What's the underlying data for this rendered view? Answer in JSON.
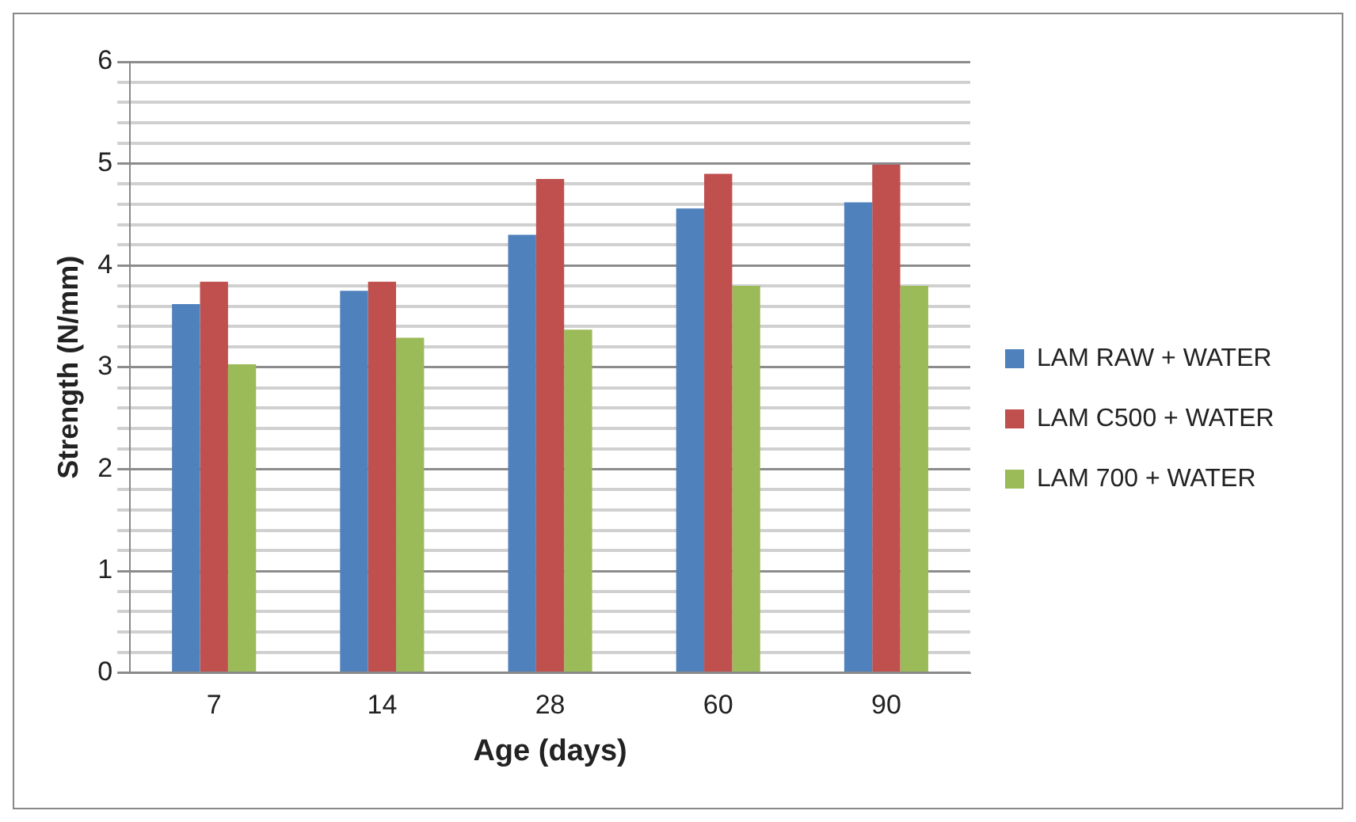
{
  "chart_data": {
    "type": "bar",
    "xlabel": "Age (days)",
    "ylabel": "Strength (N/mm)",
    "categories": [
      "7",
      "14",
      "28",
      "60",
      "90"
    ],
    "series": [
      {
        "name": "LAM RAW + WATER",
        "color": "#4f81bd",
        "values": [
          3.62,
          3.75,
          4.3,
          4.56,
          4.62
        ]
      },
      {
        "name": "LAM C500 + WATER",
        "color": "#c0504d",
        "values": [
          3.84,
          3.84,
          4.85,
          4.9,
          4.99
        ]
      },
      {
        "name": "LAM 700 + WATER",
        "color": "#9bbb59",
        "values": [
          3.03,
          3.29,
          3.37,
          3.8,
          3.8
        ]
      }
    ],
    "ylim": [
      0,
      6
    ],
    "yticks": [
      0,
      {
        "value": 0.2,
        "label": null
      },
      {
        "value": 0.4,
        "label": null
      },
      {
        "value": 0.6,
        "label": null
      },
      {
        "value": 0.8,
        "label": null
      },
      1,
      {
        "value": 1.2,
        "label": null
      },
      {
        "value": 1.4,
        "label": null
      },
      {
        "value": 1.6,
        "label": null
      },
      {
        "value": 1.8,
        "label": null
      },
      2,
      {
        "value": 2.2,
        "label": null
      },
      {
        "value": 2.4,
        "label": null
      },
      {
        "value": 2.6,
        "label": null
      },
      {
        "value": 2.8,
        "label": null
      },
      3,
      {
        "value": 3.2,
        "label": null
      },
      {
        "value": 3.4,
        "label": null
      },
      {
        "value": 3.6,
        "label": null
      },
      {
        "value": 3.8,
        "label": null
      },
      4,
      {
        "value": 4.2,
        "label": null
      },
      {
        "value": 4.4,
        "label": null
      },
      {
        "value": 4.6,
        "label": null
      },
      {
        "value": 4.8,
        "label": null
      },
      5,
      {
        "value": 5.2,
        "label": null
      },
      {
        "value": 5.4,
        "label": null
      },
      {
        "value": 5.6,
        "label": null
      },
      {
        "value": 5.8,
        "label": null
      },
      6
    ],
    "grid": "y",
    "legend": "right"
  }
}
